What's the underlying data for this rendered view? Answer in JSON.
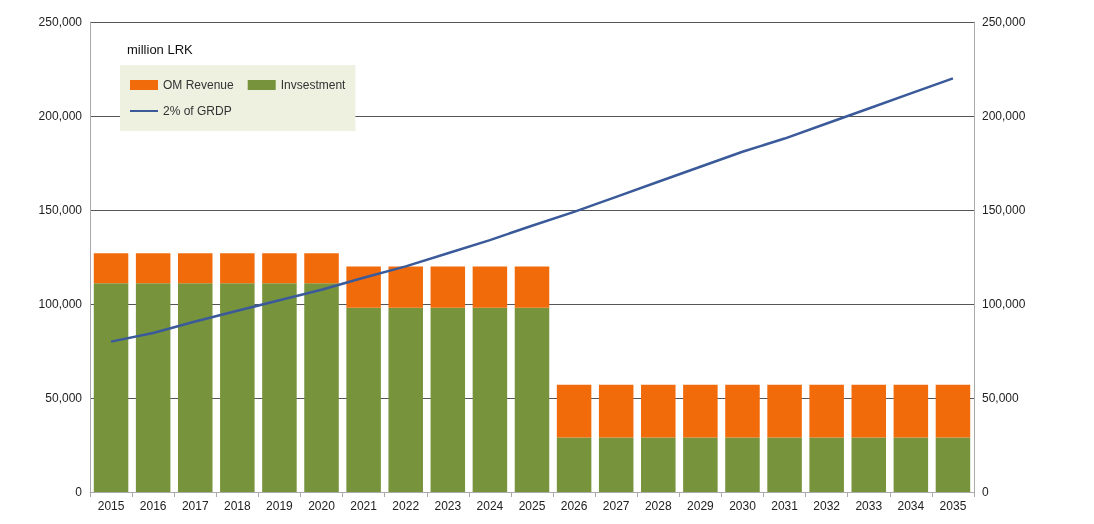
{
  "chart_data": {
    "type": "bar",
    "ylabel": "million LRK",
    "categories": [
      "2015",
      "2016",
      "2017",
      "2018",
      "2019",
      "2020",
      "2021",
      "2022",
      "2023",
      "2024",
      "2025",
      "2026",
      "2027",
      "2028",
      "2029",
      "2030",
      "2031",
      "2032",
      "2033",
      "2034",
      "2035"
    ],
    "stacked": true,
    "series": [
      {
        "name": "Invsestment",
        "color": "#77933c",
        "values": [
          111000,
          111000,
          111000,
          111000,
          111000,
          111000,
          98000,
          98000,
          98000,
          98000,
          98000,
          29000,
          29000,
          29000,
          29000,
          29000,
          29000,
          29000,
          29000,
          29000,
          29000
        ]
      },
      {
        "name": "OM Revenue",
        "color": "#f26b0a",
        "values": [
          16000,
          16000,
          16000,
          16000,
          16000,
          16000,
          22000,
          22000,
          22000,
          22000,
          22000,
          28000,
          28000,
          28000,
          28000,
          28000,
          28000,
          28000,
          28000,
          28000,
          28000
        ]
      },
      {
        "name": "2% of GRDP",
        "type": "line",
        "color": "#3a5a9a",
        "values": [
          80000,
          84600,
          90700,
          96400,
          102000,
          107600,
          114000,
          120000,
          127000,
          134000,
          141600,
          149000,
          157000,
          165000,
          173000,
          181000,
          188000,
          196000,
          204000,
          212000,
          220000
        ]
      }
    ],
    "ylim": [
      0,
      250000
    ],
    "yticks": [
      0,
      {
        "value": 50000,
        "label": "50,000"
      },
      {
        "value": 100000,
        "label": "100,000"
      },
      {
        "value": 150000,
        "label": "150,000"
      },
      {
        "value": 200000,
        "label": "200,000"
      },
      {
        "value": 250000,
        "label": "250,000"
      }
    ],
    "y2lim": [
      0,
      250000
    ],
    "y2ticks": [
      0,
      {
        "value": 50000,
        "label": "50,000"
      },
      {
        "value": 100000,
        "label": "100,000"
      },
      {
        "value": 150000,
        "label": "150,000"
      },
      {
        "value": 200000,
        "label": "200,000"
      },
      {
        "value": 250000,
        "label": "250,000"
      }
    ],
    "grid": "y",
    "legend": "top left",
    "marker": "none"
  }
}
